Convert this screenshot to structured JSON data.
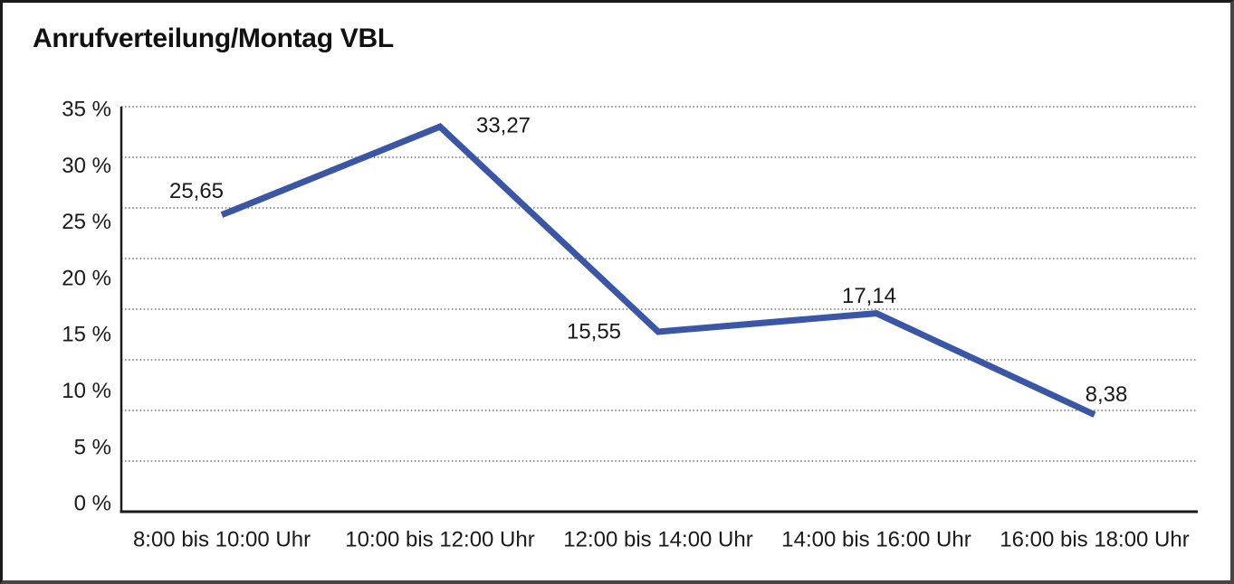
{
  "frame": {
    "background": "#ffffff",
    "border_color": "#1b1b1b"
  },
  "chart_data": {
    "type": "line",
    "title": "Anrufverteilung/Montag VBL",
    "categories": [
      "8:00 bis 10:00 Uhr",
      "10:00 bis 12:00 Uhr",
      "12:00 bis 14:00 Uhr",
      "14:00 bis 16:00 Uhr",
      "16:00 bis 18:00 Uhr"
    ],
    "values": [
      25.65,
      33.27,
      15.55,
      17.14,
      8.38
    ],
    "value_labels": [
      "25,65",
      "33,27",
      "15,55",
      "17,14",
      "8,38"
    ],
    "ytick_labels": [
      "35 %",
      "30 %",
      "25 %",
      "20 %",
      "15 %",
      "10 %",
      "5 %",
      "0 %"
    ],
    "ylim": [
      0,
      35
    ],
    "ytick_step": 5,
    "xlabel": "",
    "ylabel": "",
    "grid": "horizontal dotted gridlines, plot divided into 8 equal bands, solid bottom axis",
    "legend_position": "none",
    "line_color": "#3A56A5",
    "axis_color": "#1a1a1a",
    "grid_color": "#555555",
    "text_color": "#1a1a1a"
  }
}
